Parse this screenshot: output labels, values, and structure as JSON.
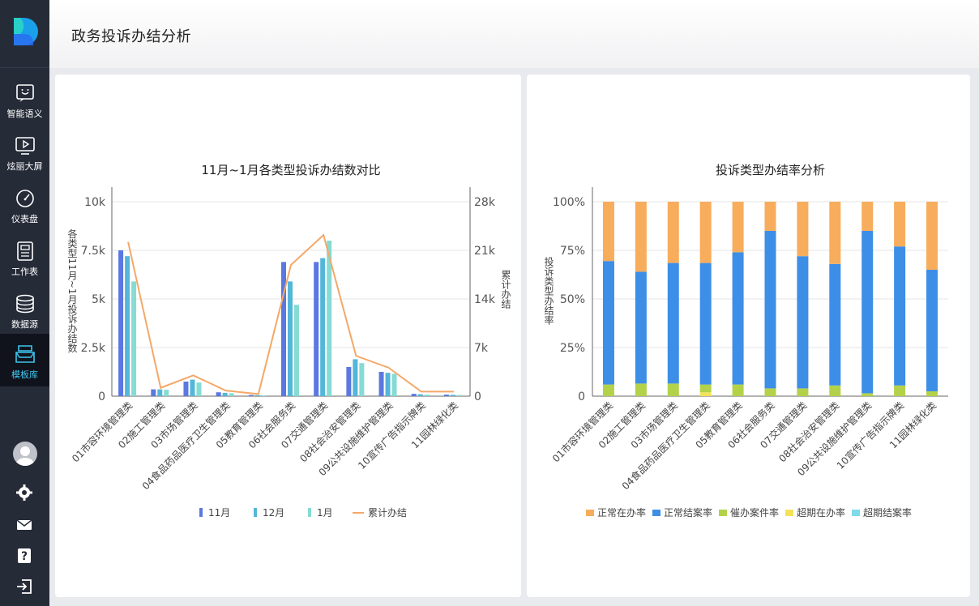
{
  "header": {
    "title": "政务投诉办结分析"
  },
  "sidebar": {
    "items": [
      {
        "label": "智能语义",
        "icon": "smile-chat-icon"
      },
      {
        "label": "炫丽大屏",
        "icon": "play-screen-icon"
      },
      {
        "label": "仪表盘",
        "icon": "gauge-icon"
      },
      {
        "label": "工作表",
        "icon": "worksheet-icon"
      },
      {
        "label": "数据源",
        "icon": "database-icon"
      },
      {
        "label": "模板库",
        "icon": "template-box-icon",
        "active": true
      }
    ],
    "bottom": [
      "avatar",
      "gear-icon",
      "mail-icon",
      "help-icon",
      "logout-icon"
    ]
  },
  "chart_data": [
    {
      "type": "bar+line",
      "title": "11月~1月各类型投诉办结数对比",
      "ylabel": "各类型11月~1月投诉办结数",
      "y2label": "累计办结",
      "ylim": [
        0,
        10000
      ],
      "y2lim": [
        0,
        28000
      ],
      "yticks": [
        "0",
        "2.5k",
        "5k",
        "7.5k",
        "10k"
      ],
      "y2ticks": [
        "0",
        "7k",
        "14k",
        "21k",
        "28k"
      ],
      "grid": true,
      "legend_position": "bottom",
      "categories": [
        "01市容环境管理类",
        "02施工管理类",
        "03市场管理类",
        "04食品药品医疗卫生管理类",
        "05教育管理类",
        "06社会服务类",
        "07交通管理类",
        "08社会治安管理类",
        "09公共设施维护管理类",
        "10宣传广告指示牌类",
        "11园林绿化类"
      ],
      "series": [
        {
          "name": "11月",
          "type": "bar",
          "axis": "left",
          "color": "#5b78e0",
          "values": [
            7500,
            350,
            750,
            200,
            60,
            6900,
            6900,
            1500,
            1250,
            120,
            80
          ]
        },
        {
          "name": "12月",
          "type": "bar",
          "axis": "left",
          "color": "#54b6d8",
          "values": [
            7200,
            350,
            850,
            170,
            50,
            5900,
            7100,
            1900,
            1200,
            100,
            70
          ]
        },
        {
          "name": "1月",
          "type": "bar",
          "axis": "left",
          "color": "#86dbd3",
          "values": [
            5900,
            330,
            700,
            150,
            40,
            4700,
            8000,
            1700,
            1150,
            80,
            60
          ]
        },
        {
          "name": "累计办结",
          "type": "line",
          "axis": "right",
          "color": "#f4a868",
          "values": [
            22200,
            1200,
            3000,
            800,
            300,
            18900,
            23200,
            5800,
            4100,
            650,
            650
          ]
        }
      ]
    },
    {
      "type": "stacked-bar",
      "title": "投诉类型办结率分析",
      "ylabel": "投诉类型办结率",
      "ylim": [
        0,
        100
      ],
      "yticks": [
        "0",
        "25%",
        "50%",
        "75%",
        "100%"
      ],
      "grid": true,
      "legend_position": "bottom",
      "categories": [
        "01市容环境管理类",
        "02施工管理类",
        "03市场管理类",
        "04食品药品医疗卫生管理类",
        "05教育管理类",
        "06社会服务类",
        "07交通管理类",
        "08社会治安管理类",
        "09公共设施维护管理类",
        "10宣传广告指示牌类",
        "11园林绿化类"
      ],
      "series": [
        {
          "name": "超期结案率",
          "color": "#7fdbe8",
          "values": [
            0,
            0,
            0,
            0,
            0,
            0,
            0,
            0,
            0,
            0,
            0
          ]
        },
        {
          "name": "超期在办率",
          "color": "#f2e25a",
          "values": [
            0,
            0,
            0,
            2,
            0,
            0,
            0,
            0,
            0,
            0,
            0
          ]
        },
        {
          "name": "催办案件率",
          "color": "#b3d24a",
          "values": [
            6,
            6.5,
            6.5,
            4,
            6,
            4,
            4,
            5.5,
            1.5,
            5.5,
            2.5
          ]
        },
        {
          "name": "正常结案率",
          "color": "#3d8ee6",
          "values": [
            63.5,
            57.5,
            62,
            62.5,
            68,
            81,
            68,
            62.5,
            83.5,
            71.5,
            62.5
          ]
        },
        {
          "name": "正常在办率",
          "color": "#f7ad5c",
          "values": [
            30.5,
            36,
            31.5,
            31.5,
            26,
            15,
            28,
            32,
            15,
            23,
            35
          ]
        }
      ],
      "legend_order": [
        "正常在办率",
        "正常结案率",
        "催办案件率",
        "超期在办率",
        "超期结案率"
      ]
    }
  ]
}
